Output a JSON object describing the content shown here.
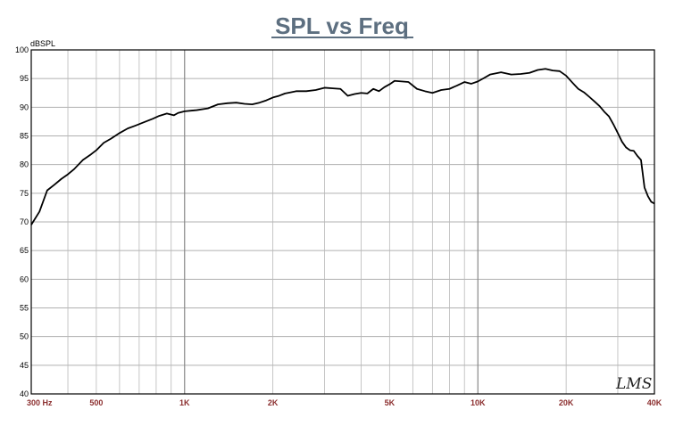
{
  "chart_data": {
    "type": "line",
    "title": "SPL vs Freq",
    "ylabel": "dBSPL",
    "xlabel": "",
    "x_scale": "log",
    "xlim": [
      300,
      40000
    ],
    "ylim": [
      40,
      100
    ],
    "grid": true,
    "y_ticks": [
      40,
      45,
      50,
      55,
      60,
      65,
      70,
      75,
      80,
      85,
      90,
      95,
      100
    ],
    "x_ticks": [
      {
        "value": 300,
        "label": "300  Hz"
      },
      {
        "value": 500,
        "label": "500"
      },
      {
        "value": 1000,
        "label": "1K"
      },
      {
        "value": 2000,
        "label": "2K"
      },
      {
        "value": 5000,
        "label": "5K"
      },
      {
        "value": 10000,
        "label": "10K"
      },
      {
        "value": 20000,
        "label": "20K"
      },
      {
        "value": 40000,
        "label": "40K"
      }
    ],
    "series": [
      {
        "color": "#000000",
        "x": [
          300,
          320,
          340,
          360,
          380,
          400,
          420,
          450,
          480,
          500,
          530,
          560,
          600,
          640,
          680,
          720,
          780,
          820,
          870,
          920,
          950,
          1000,
          1050,
          1100,
          1200,
          1300,
          1400,
          1500,
          1600,
          1700,
          1800,
          1900,
          2000,
          2100,
          2200,
          2300,
          2400,
          2600,
          2800,
          3000,
          3200,
          3400,
          3600,
          3800,
          4000,
          4200,
          4400,
          4600,
          4800,
          5000,
          5200,
          5500,
          5800,
          6200,
          6600,
          7000,
          7500,
          8000,
          8500,
          9000,
          9500,
          10000,
          10500,
          11000,
          12000,
          13000,
          14000,
          15000,
          16000,
          17000,
          18000,
          19000,
          20000,
          21000,
          22000,
          23000,
          24000,
          25000,
          26000,
          27000,
          28000,
          29000,
          30000,
          31000,
          32000,
          33000,
          34000,
          35000,
          36000,
          37000,
          38000,
          39000,
          40000
        ],
        "y": [
          69.5,
          71.8,
          75.5,
          76.5,
          77.5,
          78.3,
          79.2,
          80.8,
          81.8,
          82.5,
          83.8,
          84.5,
          85.5,
          86.3,
          86.8,
          87.3,
          88.0,
          88.5,
          88.9,
          88.6,
          89.0,
          89.3,
          89.4,
          89.5,
          89.8,
          90.5,
          90.7,
          90.8,
          90.6,
          90.5,
          90.8,
          91.2,
          91.7,
          92.0,
          92.4,
          92.6,
          92.8,
          92.8,
          93.0,
          93.4,
          93.3,
          93.2,
          92.0,
          92.3,
          92.5,
          92.4,
          93.2,
          92.8,
          93.5,
          94.0,
          94.6,
          94.5,
          94.4,
          93.2,
          92.8,
          92.5,
          93.0,
          93.2,
          93.8,
          94.4,
          94.1,
          94.5,
          95.1,
          95.7,
          96.1,
          95.7,
          95.8,
          96.0,
          96.5,
          96.7,
          96.4,
          96.3,
          95.5,
          94.3,
          93.2,
          92.6,
          91.8,
          91.0,
          90.2,
          89.2,
          88.4,
          87.0,
          85.5,
          84.0,
          83.0,
          82.5,
          82.4,
          81.5,
          80.8,
          76.0,
          74.5,
          73.5,
          73.2
        ]
      }
    ],
    "watermark": "LMS"
  }
}
